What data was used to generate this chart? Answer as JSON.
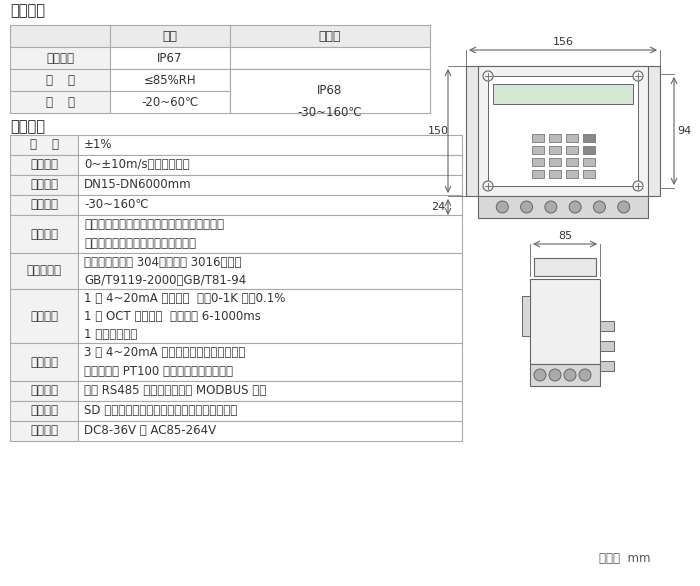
{
  "bg_color": "#ffffff",
  "border_color": "#aaaaaa",
  "header_bg": "#ebebeb",
  "cell_bg": "#f2f2f2",
  "section1_title": "工作环境",
  "env_headers": [
    "",
    "主机",
    "传感器"
  ],
  "env_rows": [
    [
      "防护等级",
      "IP67",
      "IP68"
    ],
    [
      "湿    度",
      "≤85%RH",
      ""
    ],
    [
      "温    度",
      "-20~60℃",
      "-30~160℃"
    ]
  ],
  "section2_title": "基本参数",
  "param_rows": [
    [
      "精    度",
      "±1%"
    ],
    [
      "流速范围",
      "0~±10m/s，正反向测量"
    ],
    [
      "管道口径",
      "DN15-DN6000mm"
    ],
    [
      "流体温度",
      "-30~160℃"
    ],
    [
      "流体种类",
      "水、海水、污水、酸碱液、酒精、啤酒、各类\n油类等能传导超声波的单一均匀液体"
    ],
    [
      "传感器材质",
      "钢碳钢、不锈钢 304、不锈钢 3016、法兰\nGB/T9119-2000、GB/T81-94"
    ],
    [
      "信号输出",
      "1 路 4~20mA 电流输出  阻抗0-1K 精度0.1%\n1 路 OCT 脉冲输出  脉冲宽度 6-1000ms\n1 路继电器输出"
    ],
    [
      "信号输入",
      "3 路 4~20mA 电流输入，可做数据采集器\n连接三线制 PT100 铂电阻，实现热量测量"
    ],
    [
      "通信接口",
      "隔离 RS485 串行接口，支持 MODBUS 协议"
    ],
    [
      "数据存储",
      "SD 卡定时存储设定的参数及测量结果（选配）"
    ],
    [
      "供电方式",
      "DC8-36V 或 AC85-264V"
    ]
  ],
  "param_row_heights": [
    20,
    20,
    20,
    20,
    38,
    36,
    54,
    38,
    20,
    20,
    20
  ],
  "unit_label": "单位：  mm",
  "dim_156": "156",
  "dim_150": "150",
  "dim_24": "24",
  "dim_94": "94",
  "dim_85": "85"
}
